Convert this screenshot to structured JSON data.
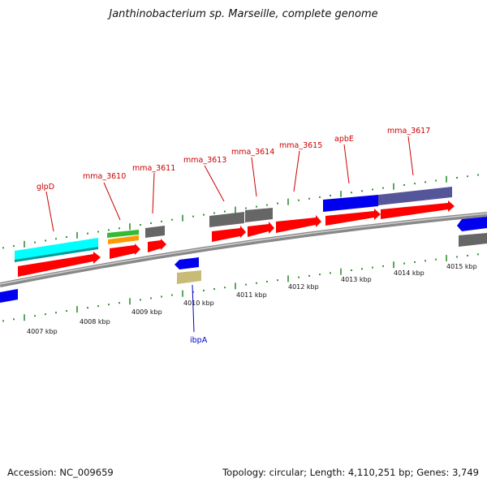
{
  "title": "Janthinobacterium sp. Marseille, complete genome",
  "footer": {
    "accession": "Accession: NC_009659",
    "summary": "Topology: circular; Length: 4,110,251 bp; Genes: 3,749"
  },
  "colors": {
    "cds_forward": "#ff0000",
    "cds_reverse": "#0000ee",
    "rna": "#666666",
    "glpD": "#00ffff",
    "green": "#33bb33",
    "orange": "#ff9900",
    "khaki": "#c8bb77",
    "slate": "#555599",
    "label_red": "#cc0000",
    "label_blue": "#0000cc",
    "tick": "#228822",
    "backbone": "#888888"
  },
  "kbp_labels": [
    "4007 kbp",
    "4008 kbp",
    "4009 kbp",
    "4010 kbp",
    "4011 kbp",
    "4012 kbp",
    "4013 kbp",
    "4014 kbp",
    "4015 kbp"
  ],
  "gene_labels": [
    {
      "name": "glpD",
      "strand": "forward"
    },
    {
      "name": "mma_3610",
      "strand": "forward"
    },
    {
      "name": "mma_3611",
      "strand": "forward"
    },
    {
      "name": "mma_3613",
      "strand": "forward"
    },
    {
      "name": "mma_3614",
      "strand": "forward"
    },
    {
      "name": "mma_3615",
      "strand": "forward"
    },
    {
      "name": "apbE",
      "strand": "forward"
    },
    {
      "name": "mma_3617",
      "strand": "forward"
    },
    {
      "name": "ibpA",
      "strand": "reverse"
    }
  ]
}
